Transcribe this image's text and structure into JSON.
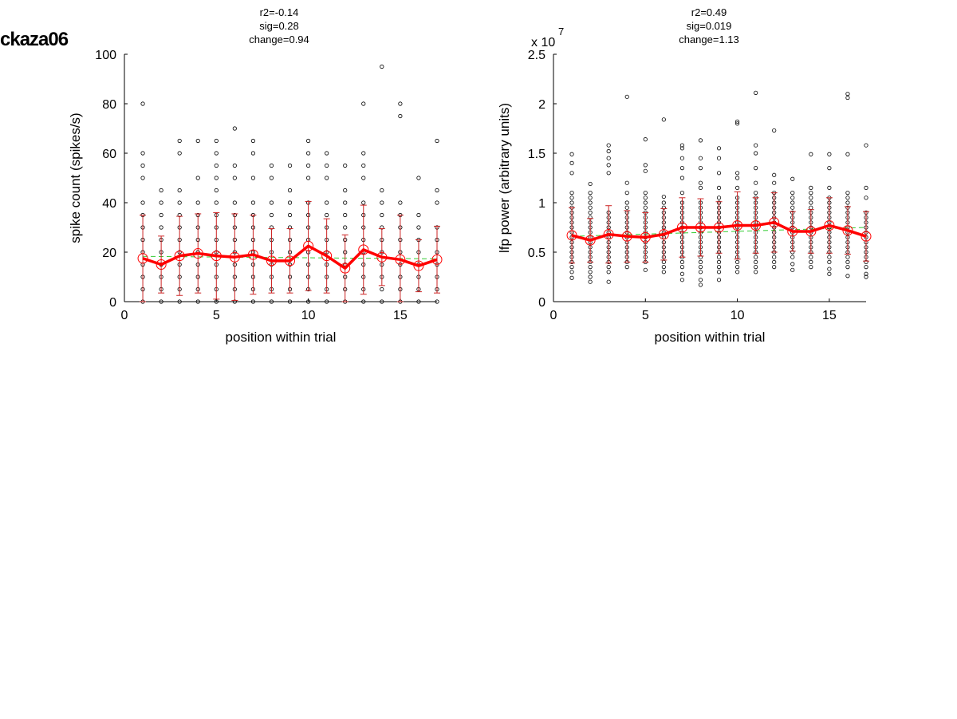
{
  "figure_title": "ckaza06",
  "colors": {
    "points": "#000000",
    "mean_line": "#ff0000",
    "error_bars": "#cc2222",
    "trend_line": "#33cc33",
    "axes": "#000000"
  },
  "chart_data": [
    {
      "type": "scatter",
      "title_lines": [
        "r2=-0.14",
        "sig=0.28",
        "change=0.94"
      ],
      "xlabel": "position within trial",
      "ylabel": "spike count (spikes/s)",
      "xlim": [
        0,
        17
      ],
      "ylim": [
        0,
        100
      ],
      "xticks": [
        0,
        5,
        10,
        15
      ],
      "yticks": [
        0,
        20,
        40,
        60,
        80,
        100
      ],
      "ytick_labels": [
        "0",
        "20",
        "40",
        "60",
        "80",
        "100"
      ],
      "y_exponent_label": "",
      "positions": [
        1,
        2,
        3,
        4,
        5,
        6,
        7,
        8,
        9,
        10,
        11,
        12,
        13,
        14,
        15,
        16,
        17
      ],
      "points": [
        [
          0,
          5,
          10,
          15,
          20,
          25,
          30,
          35,
          40,
          50,
          55,
          60,
          80
        ],
        [
          0,
          5,
          10,
          15,
          20,
          25,
          30,
          35,
          40,
          45
        ],
        [
          0,
          5,
          10,
          15,
          20,
          25,
          30,
          35,
          40,
          45,
          60,
          65
        ],
        [
          0,
          5,
          10,
          15,
          20,
          25,
          30,
          35,
          40,
          50,
          65
        ],
        [
          0,
          5,
          10,
          15,
          20,
          25,
          30,
          35,
          40,
          45,
          50,
          55,
          60,
          65
        ],
        [
          0,
          5,
          10,
          15,
          20,
          25,
          30,
          35,
          40,
          50,
          55,
          70
        ],
        [
          0,
          5,
          10,
          15,
          20,
          25,
          30,
          35,
          40,
          50,
          60,
          65
        ],
        [
          0,
          5,
          10,
          15,
          20,
          25,
          30,
          35,
          40,
          50,
          55
        ],
        [
          0,
          5,
          10,
          15,
          20,
          25,
          30,
          35,
          40,
          45,
          55
        ],
        [
          0,
          5,
          10,
          15,
          20,
          25,
          30,
          35,
          40,
          50,
          55,
          60,
          65
        ],
        [
          0,
          5,
          10,
          15,
          20,
          25,
          30,
          35,
          40,
          50,
          55,
          60
        ],
        [
          0,
          5,
          10,
          15,
          20,
          25,
          30,
          35,
          40,
          45,
          55
        ],
        [
          0,
          5,
          10,
          15,
          20,
          25,
          30,
          35,
          40,
          50,
          55,
          60,
          80
        ],
        [
          0,
          5,
          10,
          15,
          20,
          25,
          30,
          35,
          40,
          45,
          95
        ],
        [
          0,
          5,
          10,
          15,
          20,
          25,
          30,
          35,
          40,
          75,
          80
        ],
        [
          0,
          5,
          10,
          15,
          20,
          25,
          30,
          35,
          50
        ],
        [
          0,
          5,
          10,
          15,
          20,
          25,
          30,
          40,
          45,
          65
        ]
      ],
      "mean": [
        17.5,
        15,
        18.5,
        19.5,
        18.5,
        18,
        19,
        16.5,
        16.5,
        22.5,
        18.5,
        13.5,
        21,
        18,
        17,
        14.5,
        17
      ],
      "error": [
        17.5,
        11.5,
        16,
        16,
        17.5,
        17.5,
        16,
        13,
        13,
        18,
        15,
        13.5,
        18,
        11.5,
        18,
        10.5,
        13.5
      ],
      "trend": [
        18.3,
        17.3
      ]
    },
    {
      "type": "scatter",
      "title_lines": [
        "r2=0.49",
        "sig=0.019",
        "change=1.13"
      ],
      "xlabel": "position within trial",
      "ylabel": "lfp power (arbitrary units)",
      "xlim": [
        0,
        17
      ],
      "ylim": [
        0,
        2.5
      ],
      "xticks": [
        0,
        5,
        10,
        15
      ],
      "yticks": [
        0,
        0.5,
        1,
        1.5,
        2,
        2.5
      ],
      "ytick_labels": [
        "0",
        "0.5",
        "1",
        "1.5",
        "2",
        "2.5"
      ],
      "y_exponent_label": "x 10",
      "y_exponent_power": "7",
      "positions": [
        1,
        2,
        3,
        4,
        5,
        6,
        7,
        8,
        9,
        10,
        11,
        12,
        13,
        14,
        15,
        16,
        17
      ],
      "points": [
        [
          0.24,
          0.3,
          0.35,
          0.4,
          0.45,
          0.5,
          0.55,
          0.6,
          0.65,
          0.7,
          0.75,
          0.8,
          0.85,
          0.9,
          0.95,
          1.0,
          1.05,
          1.1,
          1.3,
          1.4,
          1.49
        ],
        [
          0.2,
          0.25,
          0.3,
          0.35,
          0.4,
          0.45,
          0.5,
          0.55,
          0.6,
          0.65,
          0.7,
          0.75,
          0.8,
          0.85,
          0.9,
          0.95,
          1.0,
          1.05,
          1.1,
          1.19
        ],
        [
          0.2,
          0.3,
          0.35,
          0.4,
          0.45,
          0.5,
          0.55,
          0.6,
          0.65,
          0.7,
          0.75,
          0.8,
          0.85,
          0.9,
          1.3,
          1.38,
          1.45,
          1.52,
          1.58
        ],
        [
          0.35,
          0.4,
          0.45,
          0.5,
          0.55,
          0.6,
          0.65,
          0.7,
          0.75,
          0.8,
          0.85,
          0.9,
          0.95,
          1.0,
          1.1,
          1.2,
          2.07
        ],
        [
          0.32,
          0.4,
          0.45,
          0.5,
          0.55,
          0.6,
          0.65,
          0.7,
          0.75,
          0.8,
          0.85,
          0.9,
          0.95,
          1.0,
          1.05,
          1.1,
          1.32,
          1.38,
          1.64
        ],
        [
          0.3,
          0.35,
          0.4,
          0.45,
          0.5,
          0.55,
          0.6,
          0.65,
          0.7,
          0.75,
          0.8,
          0.85,
          0.9,
          0.95,
          1.0,
          1.06,
          1.84
        ],
        [
          0.22,
          0.28,
          0.35,
          0.4,
          0.45,
          0.5,
          0.55,
          0.6,
          0.65,
          0.7,
          0.75,
          0.8,
          0.85,
          0.9,
          0.95,
          1.0,
          1.1,
          1.25,
          1.35,
          1.45,
          1.55,
          1.58
        ],
        [
          0.17,
          0.22,
          0.3,
          0.35,
          0.4,
          0.45,
          0.5,
          0.55,
          0.6,
          0.65,
          0.7,
          0.75,
          0.8,
          0.85,
          0.9,
          0.95,
          1.0,
          1.15,
          1.2,
          1.35,
          1.45,
          1.63
        ],
        [
          0.22,
          0.3,
          0.35,
          0.4,
          0.45,
          0.5,
          0.55,
          0.6,
          0.65,
          0.7,
          0.75,
          0.8,
          0.85,
          0.9,
          0.95,
          1.0,
          1.05,
          1.15,
          1.3,
          1.45,
          1.55
        ],
        [
          0.3,
          0.35,
          0.4,
          0.45,
          0.5,
          0.55,
          0.6,
          0.65,
          0.7,
          0.75,
          0.8,
          0.85,
          0.9,
          0.95,
          1.0,
          1.05,
          1.15,
          1.25,
          1.3,
          1.8,
          1.82
        ],
        [
          0.3,
          0.35,
          0.4,
          0.45,
          0.5,
          0.55,
          0.6,
          0.65,
          0.7,
          0.75,
          0.8,
          0.85,
          0.9,
          0.95,
          1.0,
          1.05,
          1.1,
          1.2,
          1.35,
          1.5,
          1.58,
          2.11
        ],
        [
          0.35,
          0.4,
          0.45,
          0.5,
          0.55,
          0.6,
          0.65,
          0.7,
          0.75,
          0.8,
          0.85,
          0.9,
          0.95,
          1.0,
          1.05,
          1.1,
          1.2,
          1.28,
          1.73
        ],
        [
          0.32,
          0.38,
          0.45,
          0.5,
          0.55,
          0.6,
          0.65,
          0.7,
          0.75,
          0.8,
          0.85,
          0.9,
          0.95,
          1.0,
          1.05,
          1.1,
          1.24
        ],
        [
          0.35,
          0.4,
          0.45,
          0.5,
          0.55,
          0.6,
          0.65,
          0.7,
          0.75,
          0.8,
          0.85,
          0.9,
          0.95,
          1.0,
          1.05,
          1.1,
          1.15,
          1.49
        ],
        [
          0.28,
          0.33,
          0.4,
          0.45,
          0.5,
          0.55,
          0.6,
          0.65,
          0.7,
          0.75,
          0.8,
          0.85,
          0.9,
          0.95,
          1.0,
          1.05,
          1.15,
          1.35,
          1.49
        ],
        [
          0.26,
          0.35,
          0.4,
          0.45,
          0.5,
          0.55,
          0.6,
          0.65,
          0.7,
          0.75,
          0.8,
          0.85,
          0.9,
          0.95,
          1.0,
          1.05,
          1.1,
          1.49,
          2.06,
          2.1
        ],
        [
          0.25,
          0.28,
          0.35,
          0.4,
          0.45,
          0.5,
          0.55,
          0.6,
          0.65,
          0.7,
          0.75,
          0.8,
          0.85,
          0.9,
          1.05,
          1.15,
          1.58
        ]
      ],
      "mean": [
        0.67,
        0.62,
        0.68,
        0.66,
        0.65,
        0.68,
        0.75,
        0.75,
        0.75,
        0.77,
        0.77,
        0.8,
        0.71,
        0.71,
        0.77,
        0.72,
        0.66
      ],
      "error": [
        0.28,
        0.22,
        0.29,
        0.26,
        0.25,
        0.26,
        0.3,
        0.29,
        0.26,
        0.34,
        0.28,
        0.3,
        0.2,
        0.22,
        0.28,
        0.24,
        0.25
      ],
      "trend": [
        0.66,
        0.75
      ]
    }
  ]
}
